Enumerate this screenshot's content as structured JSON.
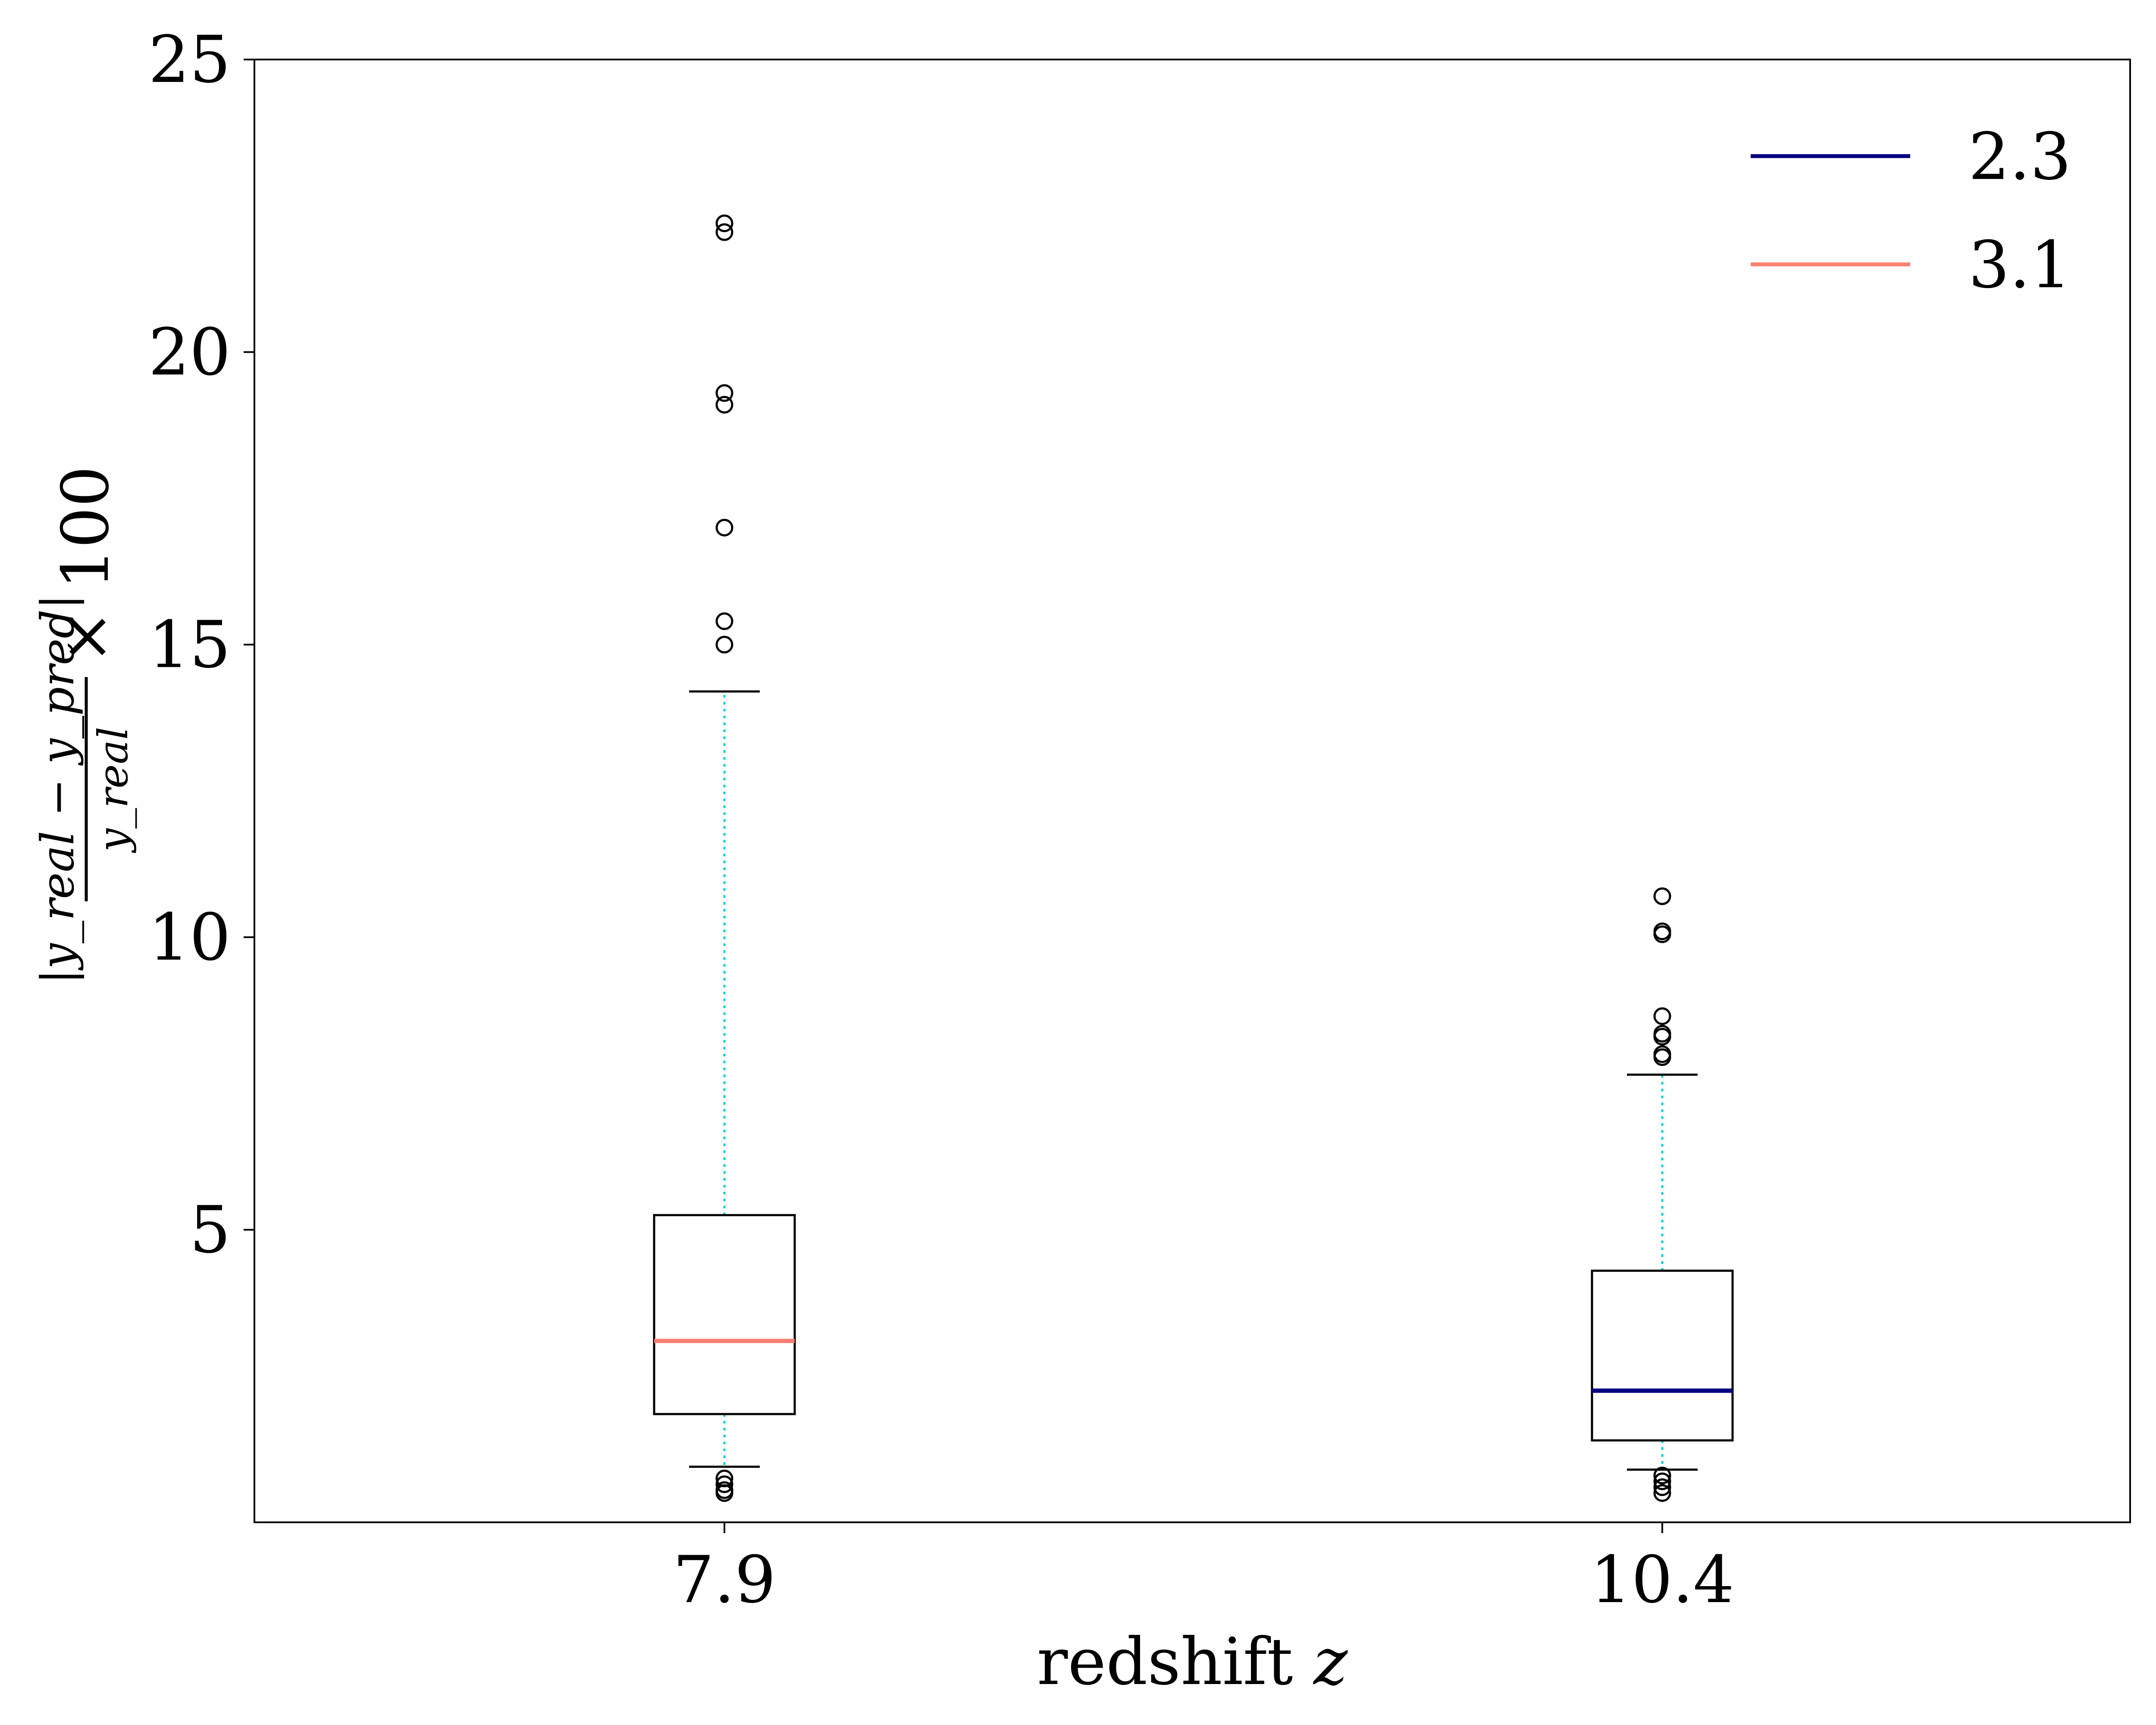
{
  "chart_data": {
    "type": "box",
    "categories": [
      "7.9",
      "10.4"
    ],
    "xlabel_text": "redshift ",
    "xlabel_var": "z",
    "ylabel": {
      "numerator": "|y_real − y_pred|",
      "denominator": "y_real",
      "suffix": "× 100"
    },
    "ylim": [
      0,
      25
    ],
    "yticks": [
      "5",
      "10",
      "15",
      "20",
      "25"
    ],
    "grid": false,
    "legend_position": "top-right",
    "legend": [
      {
        "label": "2.3",
        "color": "#000080"
      },
      {
        "label": "3.1",
        "color": "#fa8072"
      }
    ],
    "boxes": [
      {
        "category": "7.9",
        "median": 3.1,
        "q1": 1.85,
        "q3": 5.25,
        "whisker_low": 0.95,
        "whisker_high": 14.2,
        "outliers_high": [
          15.0,
          15.4,
          17.0,
          19.1,
          19.3,
          22.05,
          22.2
        ],
        "outliers_low": [
          0.75,
          0.65,
          0.55,
          0.5
        ],
        "median_color": "#fa8072"
      },
      {
        "category": "10.4",
        "median": 2.25,
        "q1": 1.4,
        "q3": 4.3,
        "whisker_low": 0.9,
        "whisker_high": 7.65,
        "outliers_high": [
          7.95,
          8.0,
          8.3,
          8.35,
          8.65,
          10.05,
          10.1,
          10.7
        ],
        "outliers_low": [
          0.8,
          0.7,
          0.6,
          0.5
        ],
        "median_color": "#000080"
      }
    ],
    "whisker_color": "#00ced1"
  }
}
